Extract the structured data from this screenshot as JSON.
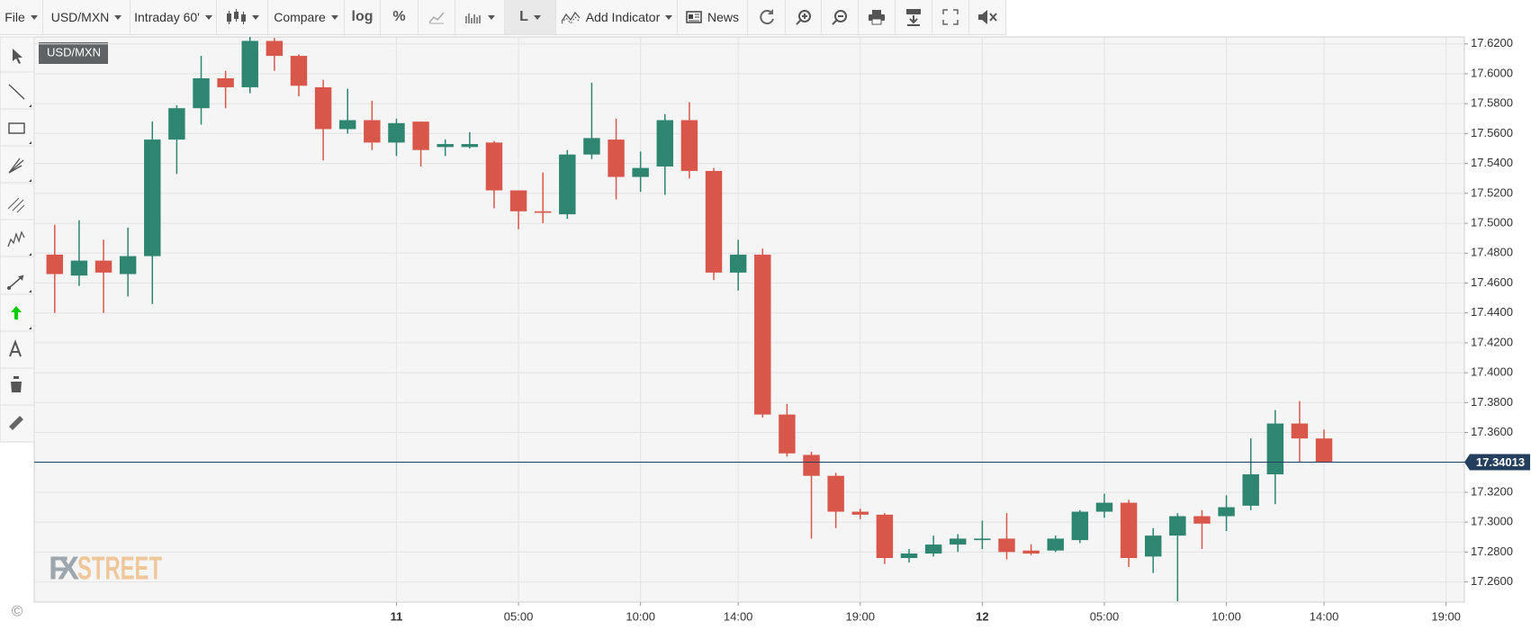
{
  "toolbar": {
    "file": "File",
    "symbol": "USD/MXN",
    "interval": "Intraday 60'",
    "compare": "Compare",
    "log": "log",
    "percent": "%",
    "line": "L",
    "add_indicator": "Add Indicator",
    "news": "News"
  },
  "watermark": {
    "fx": "FX",
    "street": "STREET"
  },
  "copyright": "©",
  "chart_data": {
    "type": "candlestick",
    "symbol": "USD/MXN",
    "x": [
      -14,
      -13,
      -12,
      -11,
      -10,
      -9,
      -8,
      -7,
      -6,
      -5,
      -4,
      -3,
      -2,
      -1,
      0,
      1,
      2,
      3,
      4,
      5,
      6,
      7,
      8,
      9,
      10,
      11,
      12,
      13,
      14,
      15,
      16,
      17,
      18,
      19,
      20,
      21,
      22,
      23,
      24,
      25,
      26,
      27,
      28,
      29,
      30,
      31,
      32,
      33,
      34,
      35,
      36,
      37,
      38
    ],
    "open": [
      17.479,
      17.465,
      17.475,
      17.466,
      17.478,
      17.556,
      17.577,
      17.597,
      17.591,
      17.622,
      17.612,
      17.591,
      17.563,
      17.569,
      17.554,
      17.568,
      17.551,
      17.551,
      17.554,
      17.522,
      17.508,
      17.506,
      17.546,
      17.556,
      17.531,
      17.538,
      17.569,
      17.535,
      17.467,
      17.479,
      17.372,
      17.345,
      17.331,
      17.307,
      17.305,
      17.276,
      17.279,
      17.285,
      17.288,
      17.289,
      17.281,
      17.281,
      17.288,
      17.307,
      17.313,
      17.277,
      17.291,
      17.304,
      17.304,
      17.311,
      17.332,
      17.366,
      17.356
    ],
    "high": [
      17.499,
      17.502,
      17.489,
      17.497,
      17.568,
      17.579,
      17.612,
      17.602,
      17.625,
      17.624,
      17.613,
      17.596,
      17.59,
      17.582,
      17.57,
      17.568,
      17.556,
      17.561,
      17.555,
      17.522,
      17.534,
      17.549,
      17.594,
      17.57,
      17.548,
      17.573,
      17.581,
      17.537,
      17.489,
      17.483,
      17.379,
      17.347,
      17.333,
      17.309,
      17.306,
      17.282,
      17.291,
      17.292,
      17.301,
      17.306,
      17.285,
      17.291,
      17.308,
      17.319,
      17.315,
      17.296,
      17.306,
      17.308,
      17.318,
      17.356,
      17.375,
      17.381,
      17.362
    ],
    "low": [
      17.44,
      17.458,
      17.44,
      17.451,
      17.446,
      17.533,
      17.566,
      17.577,
      17.587,
      17.602,
      17.585,
      17.542,
      17.56,
      17.549,
      17.545,
      17.538,
      17.545,
      17.55,
      17.51,
      17.496,
      17.5,
      17.503,
      17.543,
      17.516,
      17.521,
      17.519,
      17.53,
      17.462,
      17.455,
      17.37,
      17.344,
      17.289,
      17.296,
      17.302,
      17.272,
      17.273,
      17.277,
      17.28,
      17.282,
      17.275,
      17.278,
      17.28,
      17.286,
      17.303,
      17.27,
      17.266,
      17.247,
      17.282,
      17.294,
      17.308,
      17.312,
      17.34,
      17.34
    ],
    "close": [
      17.466,
      17.475,
      17.467,
      17.478,
      17.556,
      17.577,
      17.597,
      17.591,
      17.622,
      17.612,
      17.592,
      17.563,
      17.569,
      17.554,
      17.567,
      17.549,
      17.553,
      17.553,
      17.522,
      17.508,
      17.507,
      17.546,
      17.557,
      17.531,
      17.537,
      17.569,
      17.535,
      17.467,
      17.479,
      17.372,
      17.346,
      17.331,
      17.307,
      17.305,
      17.276,
      17.279,
      17.285,
      17.289,
      17.289,
      17.28,
      17.279,
      17.289,
      17.307,
      17.313,
      17.276,
      17.291,
      17.304,
      17.299,
      17.31,
      17.332,
      17.366,
      17.356,
      17.34013
    ],
    "up_color": "#2e8570",
    "down_color": "#d9574a",
    "current_price": 17.34013,
    "current_price_color": "#243f5e",
    "xlim": [
      -14.84,
      43.75
    ],
    "ylim": [
      17.2465,
      17.6247
    ],
    "grid": true,
    "xticks": [
      {
        "value": 0,
        "label": "11"
      },
      {
        "value": 5,
        "label": "05:00"
      },
      {
        "value": 10,
        "label": "10:00"
      },
      {
        "value": 14,
        "label": "14:00"
      },
      {
        "value": 19,
        "label": "19:00"
      },
      {
        "value": 24,
        "label": "12"
      },
      {
        "value": 29,
        "label": "05:00"
      },
      {
        "value": 34,
        "label": "10:00"
      },
      {
        "value": 38,
        "label": "14:00"
      },
      {
        "value": 43,
        "label": "19:00"
      }
    ],
    "yticks": [
      {
        "value": 17.26,
        "label": "17.2600"
      },
      {
        "value": 17.28,
        "label": "17.2800"
      },
      {
        "value": 17.3,
        "label": "17.3000"
      },
      {
        "value": 17.32,
        "label": "17.3200"
      },
      {
        "value": 17.34,
        "label": "17.3400"
      },
      {
        "value": 17.36,
        "label": "17.3600"
      },
      {
        "value": 17.38,
        "label": "17.3800"
      },
      {
        "value": 17.4,
        "label": "17.4000"
      },
      {
        "value": 17.42,
        "label": "17.4200"
      },
      {
        "value": 17.44,
        "label": "17.4400"
      },
      {
        "value": 17.46,
        "label": "17.4600"
      },
      {
        "value": 17.48,
        "label": "17.4800"
      },
      {
        "value": 17.5,
        "label": "17.5000"
      },
      {
        "value": 17.52,
        "label": "17.5200"
      },
      {
        "value": 17.54,
        "label": "17.5400"
      },
      {
        "value": 17.56,
        "label": "17.5600"
      },
      {
        "value": 17.58,
        "label": "17.5800"
      },
      {
        "value": 17.6,
        "label": "17.6000"
      },
      {
        "value": 17.62,
        "label": "17.6200"
      }
    ]
  }
}
